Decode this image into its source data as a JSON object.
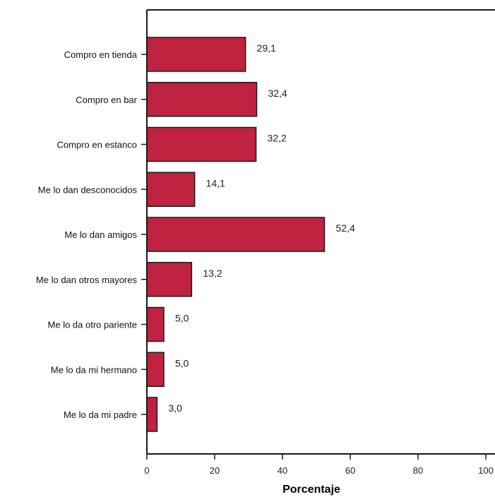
{
  "chart_data": {
    "type": "bar",
    "orientation": "horizontal",
    "categories": [
      "Compro en tienda",
      "Compro en bar",
      "Compro en estanco",
      "Me lo dan desconocidos",
      "Me lo dan amigos",
      "Me lo dan otros mayores",
      "Me lo da otro pariente",
      "Me lo da mi hermano",
      "Me lo da mi padre"
    ],
    "values": [
      29.1,
      32.4,
      32.2,
      14.1,
      52.4,
      13.2,
      5.0,
      5.0,
      3.0
    ],
    "value_labels": [
      "29,1",
      "32,4",
      "32,2",
      "14,1",
      "52,4",
      "13,2",
      "5,0",
      "5,0",
      "3,0"
    ],
    "title": "",
    "xlabel": "Porcentaje",
    "ylabel": "",
    "xlim": [
      0,
      100
    ],
    "xticks": [
      0,
      20,
      40,
      60,
      80,
      100
    ],
    "xtick_labels": [
      "0",
      "20",
      "40",
      "60",
      "80",
      "100"
    ],
    "grid": false,
    "legend": "none",
    "bar_color": "#c0233f",
    "bar_edge_color": "#1a1a1a"
  }
}
